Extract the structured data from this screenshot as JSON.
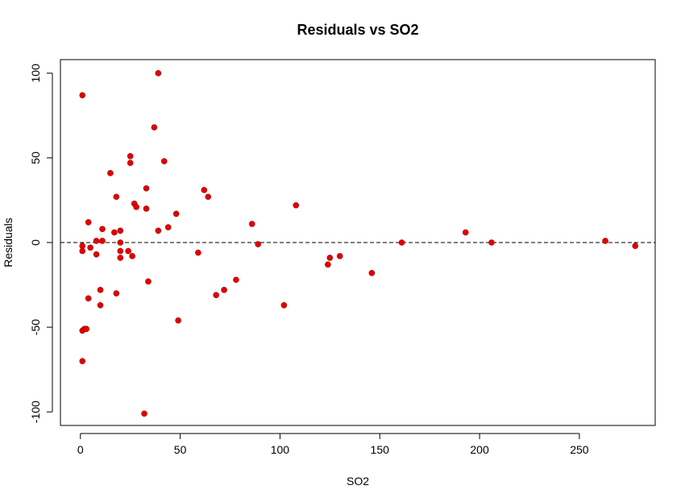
{
  "chart_data": {
    "type": "scatter",
    "title": "Residuals vs SO2",
    "xlabel": "SO2",
    "ylabel": "Residuals",
    "xlim": [
      -10,
      288
    ],
    "ylim": [
      -108,
      108
    ],
    "x_ticks": [
      0,
      50,
      100,
      150,
      200,
      250
    ],
    "y_ticks": [
      -100,
      -50,
      0,
      50,
      100
    ],
    "reference_line": {
      "y": 0,
      "style": "dashed"
    },
    "point_color": "#e60000",
    "grid": false,
    "points": [
      {
        "x": 1,
        "y": 87
      },
      {
        "x": 1,
        "y": -2
      },
      {
        "x": 1,
        "y": -5
      },
      {
        "x": 1,
        "y": -52
      },
      {
        "x": 2,
        "y": -51
      },
      {
        "x": 1,
        "y": -70
      },
      {
        "x": 3,
        "y": -51
      },
      {
        "x": 4,
        "y": 12
      },
      {
        "x": 4,
        "y": -33
      },
      {
        "x": 5,
        "y": -3
      },
      {
        "x": 8,
        "y": 1
      },
      {
        "x": 8,
        "y": -7
      },
      {
        "x": 10,
        "y": -28
      },
      {
        "x": 10,
        "y": -37
      },
      {
        "x": 11,
        "y": 8
      },
      {
        "x": 11,
        "y": 1
      },
      {
        "x": 15,
        "y": 41
      },
      {
        "x": 17,
        "y": 6
      },
      {
        "x": 18,
        "y": 27
      },
      {
        "x": 18,
        "y": -30
      },
      {
        "x": 20,
        "y": 7
      },
      {
        "x": 20,
        "y": 0
      },
      {
        "x": 20,
        "y": -5
      },
      {
        "x": 20,
        "y": -9
      },
      {
        "x": 24,
        "y": -5
      },
      {
        "x": 25,
        "y": 51
      },
      {
        "x": 25,
        "y": 47
      },
      {
        "x": 26,
        "y": -8
      },
      {
        "x": 27,
        "y": 23
      },
      {
        "x": 28,
        "y": 21
      },
      {
        "x": 32,
        "y": -101
      },
      {
        "x": 33,
        "y": 32
      },
      {
        "x": 33,
        "y": 20
      },
      {
        "x": 34,
        "y": -23
      },
      {
        "x": 37,
        "y": 68
      },
      {
        "x": 39,
        "y": 100
      },
      {
        "x": 39,
        "y": 7
      },
      {
        "x": 42,
        "y": 48
      },
      {
        "x": 44,
        "y": 9
      },
      {
        "x": 48,
        "y": 17
      },
      {
        "x": 49,
        "y": -46
      },
      {
        "x": 59,
        "y": -6
      },
      {
        "x": 62,
        "y": 31
      },
      {
        "x": 64,
        "y": 27
      },
      {
        "x": 68,
        "y": -31
      },
      {
        "x": 72,
        "y": -28
      },
      {
        "x": 78,
        "y": -22
      },
      {
        "x": 86,
        "y": 11
      },
      {
        "x": 89,
        "y": -1
      },
      {
        "x": 102,
        "y": -37
      },
      {
        "x": 108,
        "y": 22
      },
      {
        "x": 124,
        "y": -13
      },
      {
        "x": 125,
        "y": -9
      },
      {
        "x": 130,
        "y": -8
      },
      {
        "x": 146,
        "y": -18
      },
      {
        "x": 161,
        "y": 0
      },
      {
        "x": 193,
        "y": 6
      },
      {
        "x": 206,
        "y": 0
      },
      {
        "x": 263,
        "y": 1
      },
      {
        "x": 278,
        "y": -2
      }
    ]
  }
}
